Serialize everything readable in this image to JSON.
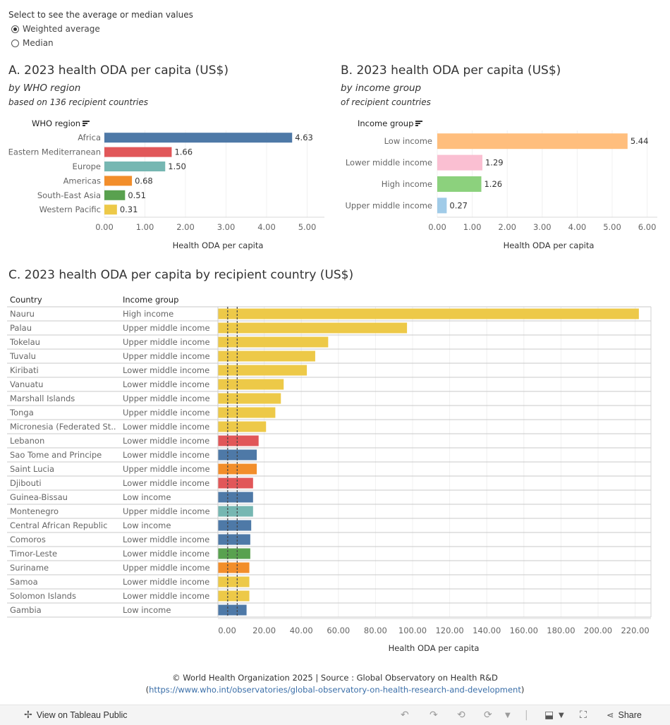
{
  "control": {
    "title": "Select to see the average or median values",
    "options": [
      "Weighted average",
      "Median"
    ],
    "selected": 0
  },
  "panel_a": {
    "title": "A. 2023 health ODA per capita (US$)",
    "subtitle": "by WHO region",
    "subtitle2": "based on 136 recipient countries",
    "header": "WHO region"
  },
  "panel_b": {
    "title": "B. 2023 health ODA per capita (US$)",
    "subtitle": "by income group",
    "subtitle2": "of recipient countries",
    "header": "Income group"
  },
  "panel_c": {
    "title": "C. 2023 health ODA per capita by recipient country (US$)",
    "col_country": "Country",
    "col_income": "Income group"
  },
  "colors": {
    "africa": "#4e79a7",
    "eastern_mediterranean": "#e15759",
    "europe": "#76b7b2",
    "americas": "#f28e2b",
    "south_east_asia": "#59a14f",
    "western_pacific": "#edc948",
    "low_income": "#ffbe7d",
    "lower_middle_income": "#fabfd2",
    "high_income": "#8cd17d",
    "upper_middle_income": "#a0cbe8"
  },
  "chart_data": [
    {
      "type": "bar",
      "orientation": "horizontal",
      "title": "A. 2023 health ODA per capita (US$)",
      "categories": [
        "Africa",
        "Eastern Mediterranean",
        "Europe",
        "Americas",
        "South-East Asia",
        "Western Pacific"
      ],
      "values": [
        4.63,
        1.66,
        1.5,
        0.68,
        0.51,
        0.31
      ],
      "value_labels": [
        "4.63",
        "1.66",
        "1.50",
        "0.68",
        "0.51",
        "0.31"
      ],
      "colors": [
        "#4e79a7",
        "#e15759",
        "#76b7b2",
        "#f28e2b",
        "#59a14f",
        "#edc948"
      ],
      "xlabel": "Health ODA per capita",
      "xlim": [
        0,
        5.5
      ],
      "xticks": [
        0,
        1,
        2,
        3,
        4,
        5
      ],
      "xtick_labels": [
        "0.00",
        "1.00",
        "2.00",
        "3.00",
        "4.00",
        "5.00"
      ]
    },
    {
      "type": "bar",
      "orientation": "horizontal",
      "title": "B. 2023 health ODA per capita (US$)",
      "categories": [
        "Low income",
        "Lower middle income",
        "High income",
        "Upper middle income"
      ],
      "values": [
        5.44,
        1.29,
        1.26,
        0.27
      ],
      "value_labels": [
        "5.44",
        "1.29",
        "1.26",
        "0.27"
      ],
      "colors": [
        "#ffbe7d",
        "#fabfd2",
        "#8cd17d",
        "#a0cbe8"
      ],
      "xlabel": "Health ODA per capita",
      "xlim": [
        0,
        6.3
      ],
      "xticks": [
        0,
        1,
        2,
        3,
        4,
        5,
        6
      ],
      "xtick_labels": [
        "0.00",
        "1.00",
        "2.00",
        "3.00",
        "4.00",
        "5.00",
        "6.00"
      ]
    },
    {
      "type": "bar",
      "orientation": "horizontal",
      "title": "C. 2023 health ODA per capita by recipient country (US$)",
      "countries": [
        "Nauru",
        "Palau",
        "Tokelau",
        "Tuvalu",
        "Kiribati",
        "Vanuatu",
        "Marshall Islands",
        "Tonga",
        "Micronesia (Federated St..",
        "Lebanon",
        "Sao Tome and Principe",
        "Saint Lucia",
        "Djibouti",
        "Guinea-Bissau",
        "Montenegro",
        "Central African Republic",
        "Comoros",
        "Timor-Leste",
        "Suriname",
        "Samoa",
        "Solomon Islands",
        "Gambia"
      ],
      "income_groups": [
        "High income",
        "Upper middle income",
        "Upper middle income",
        "Upper middle income",
        "Lower middle income",
        "Lower middle income",
        "Upper middle income",
        "Upper middle income",
        "Lower middle income",
        "Lower middle income",
        "Lower middle income",
        "Upper middle income",
        "Lower middle income",
        "Low income",
        "Upper middle income",
        "Low income",
        "Lower middle income",
        "Lower middle income",
        "Upper middle income",
        "Lower middle income",
        "Lower middle income",
        "Low income"
      ],
      "values": [
        222.0,
        97.0,
        54.5,
        47.5,
        43.0,
        30.5,
        29.0,
        26.0,
        21.0,
        17.0,
        16.0,
        16.0,
        14.0,
        14.0,
        14.0,
        13.0,
        12.5,
        12.5,
        12.0,
        12.0,
        12.0,
        10.5
      ],
      "colors": [
        "#edc948",
        "#edc948",
        "#edc948",
        "#edc948",
        "#edc948",
        "#edc948",
        "#edc948",
        "#edc948",
        "#edc948",
        "#e15759",
        "#4e79a7",
        "#f28e2b",
        "#e15759",
        "#4e79a7",
        "#76b7b2",
        "#4e79a7",
        "#4e79a7",
        "#59a14f",
        "#f28e2b",
        "#edc948",
        "#edc948",
        "#4e79a7"
      ],
      "reference_lines": [
        0.31,
        5.44
      ],
      "xlabel": "Health ODA per capita",
      "xlim": [
        -5,
        228
      ],
      "xticks": [
        0,
        20,
        40,
        60,
        80,
        100,
        120,
        140,
        160,
        180,
        200,
        220
      ],
      "xtick_labels": [
        "0.00",
        "20.00",
        "40.00",
        "60.00",
        "80.00",
        "100.00",
        "120.00",
        "140.00",
        "160.00",
        "180.00",
        "200.00",
        "220.00"
      ]
    }
  ],
  "footer": {
    "line1": "© World Health Organization 2025 | Source : Global Observatory on Health R&D",
    "paren_open": "(",
    "link": "https://www.who.int/observatories/global-observatory-on-health-research-and-development",
    "paren_close": ")"
  },
  "toolbar": {
    "view_label": "View on Tableau Public",
    "share_label": "Share"
  }
}
